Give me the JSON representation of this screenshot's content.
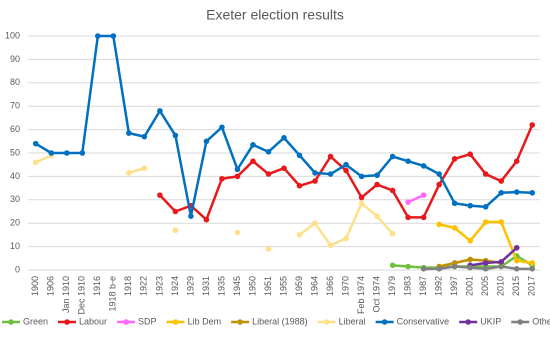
{
  "chart_data": {
    "type": "line",
    "title": "Exeter election results",
    "categories": [
      "1900",
      "1906",
      "Jan 1910",
      "Dec 1910",
      "1916",
      "1918 b-e",
      "1918",
      "1922",
      "1923",
      "1924",
      "1929",
      "1931",
      "1935",
      "1945",
      "1950",
      "1951",
      "1955",
      "1959",
      "1964",
      "1966",
      "1970",
      "Feb 1974",
      "Oct 1974",
      "1979",
      "1983",
      "1987",
      "1992",
      "1997",
      "2001",
      "2005",
      "2010",
      "2015",
      "2017"
    ],
    "ylim": [
      0,
      100
    ],
    "yticks": [
      0,
      10,
      20,
      30,
      40,
      50,
      60,
      70,
      80,
      90,
      100
    ],
    "grid": true,
    "legend": "bottom",
    "series": [
      {
        "name": "Green",
        "color": "#70c040",
        "values": [
          null,
          null,
          null,
          null,
          null,
          null,
          null,
          null,
          null,
          null,
          null,
          null,
          null,
          null,
          null,
          null,
          null,
          null,
          null,
          null,
          null,
          null,
          null,
          2,
          1.5,
          1,
          1,
          1.5,
          1.5,
          1.5,
          1.5,
          6,
          2
        ]
      },
      {
        "name": "Labour",
        "color": "#e8191c",
        "values": [
          null,
          null,
          null,
          null,
          null,
          null,
          null,
          null,
          32,
          25,
          27.5,
          21.5,
          39,
          40,
          46.5,
          41,
          43.5,
          36,
          38,
          48.5,
          42.5,
          31,
          36.5,
          34,
          22.5,
          22.5,
          36.5,
          47.5,
          49.5,
          41,
          38,
          46.5,
          62
        ]
      },
      {
        "name": "SDP",
        "color": "#ff66ff",
        "values": [
          null,
          null,
          null,
          null,
          null,
          null,
          null,
          null,
          null,
          null,
          null,
          null,
          null,
          null,
          null,
          null,
          null,
          null,
          null,
          null,
          null,
          null,
          null,
          null,
          29,
          32,
          null,
          null,
          null,
          null,
          null,
          null,
          null
        ]
      },
      {
        "name": "Lib Dem",
        "color": "#ffc000",
        "values": [
          null,
          null,
          null,
          null,
          null,
          null,
          null,
          null,
          null,
          null,
          null,
          null,
          null,
          null,
          null,
          null,
          null,
          null,
          null,
          null,
          null,
          null,
          null,
          null,
          null,
          null,
          19.5,
          18,
          12.5,
          20.5,
          20.5,
          4,
          3
        ]
      },
      {
        "name": "Liberal (1988)",
        "color": "#bf9000",
        "values": [
          null,
          null,
          null,
          null,
          null,
          null,
          null,
          null,
          null,
          null,
          null,
          null,
          null,
          null,
          null,
          null,
          null,
          null,
          null,
          null,
          null,
          null,
          null,
          null,
          null,
          null,
          1.5,
          3,
          4.5,
          4,
          3,
          null,
          null
        ]
      },
      {
        "name": "Liberal",
        "color": "#ffe08a",
        "values": [
          46,
          49,
          null,
          null,
          null,
          null,
          41.5,
          43.5,
          null,
          17,
          null,
          null,
          null,
          16,
          null,
          9,
          null,
          15,
          20,
          10.5,
          13.5,
          28.5,
          23,
          15.5,
          null,
          null,
          null,
          null,
          null,
          null,
          null,
          null,
          null
        ]
      },
      {
        "name": "Conservative",
        "color": "#0070c0",
        "values": [
          54,
          50,
          50,
          50,
          100,
          100,
          58.5,
          57,
          68,
          57.5,
          23,
          55,
          61,
          43,
          53.5,
          50.5,
          56.5,
          49,
          41.5,
          41,
          45,
          40,
          40.5,
          48.5,
          46.5,
          44.5,
          41,
          28.5,
          27.5,
          27,
          33,
          33.3,
          33
        ]
      },
      {
        "name": "UKIP",
        "color": "#7030a0",
        "values": [
          null,
          null,
          null,
          null,
          null,
          null,
          null,
          null,
          null,
          null,
          null,
          null,
          null,
          null,
          null,
          null,
          null,
          null,
          null,
          null,
          null,
          null,
          null,
          null,
          null,
          null,
          null,
          null,
          2,
          3,
          3.5,
          9.5,
          null
        ]
      },
      {
        "name": "Others",
        "color": "#808080",
        "values": [
          null,
          null,
          null,
          null,
          null,
          null,
          null,
          null,
          null,
          null,
          null,
          null,
          null,
          null,
          null,
          null,
          null,
          null,
          null,
          null,
          null,
          null,
          null,
          null,
          null,
          0.5,
          0.5,
          1.5,
          1,
          0.5,
          1.5,
          0.5,
          0.5
        ]
      }
    ]
  }
}
